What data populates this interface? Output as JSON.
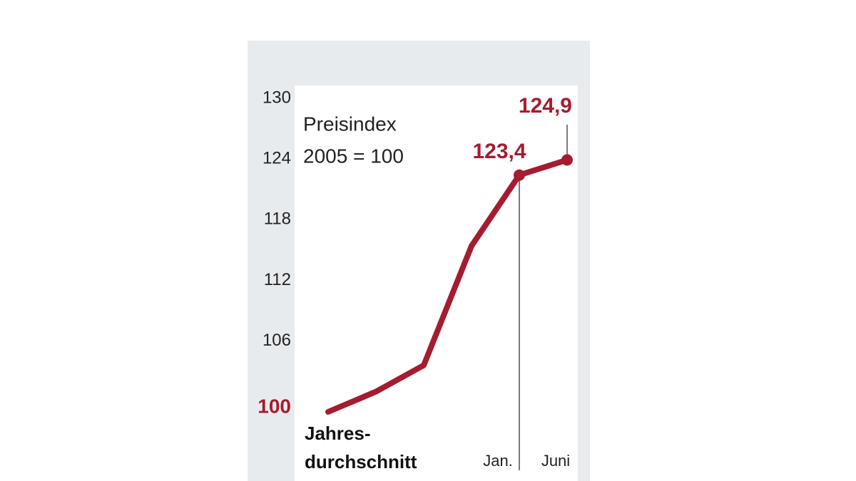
{
  "chart_data": {
    "type": "line",
    "annotation": [
      "Preisindex",
      "2005 = 100"
    ],
    "categories": [
      null,
      null,
      null,
      null,
      "Jan.",
      "Juni"
    ],
    "group_label": [
      "Jahres-",
      "durchschnitt"
    ],
    "series": [
      {
        "color": "#a51c30",
        "values": [
          100,
          102,
          104.6,
          116.4,
          123.4,
          124.9
        ],
        "value_labels": [
          null,
          null,
          null,
          null,
          "123,4",
          "124,9"
        ]
      }
    ],
    "ylim": [
      99,
      132
    ],
    "yticks": [
      100,
      106,
      112,
      118,
      124,
      130
    ]
  }
}
